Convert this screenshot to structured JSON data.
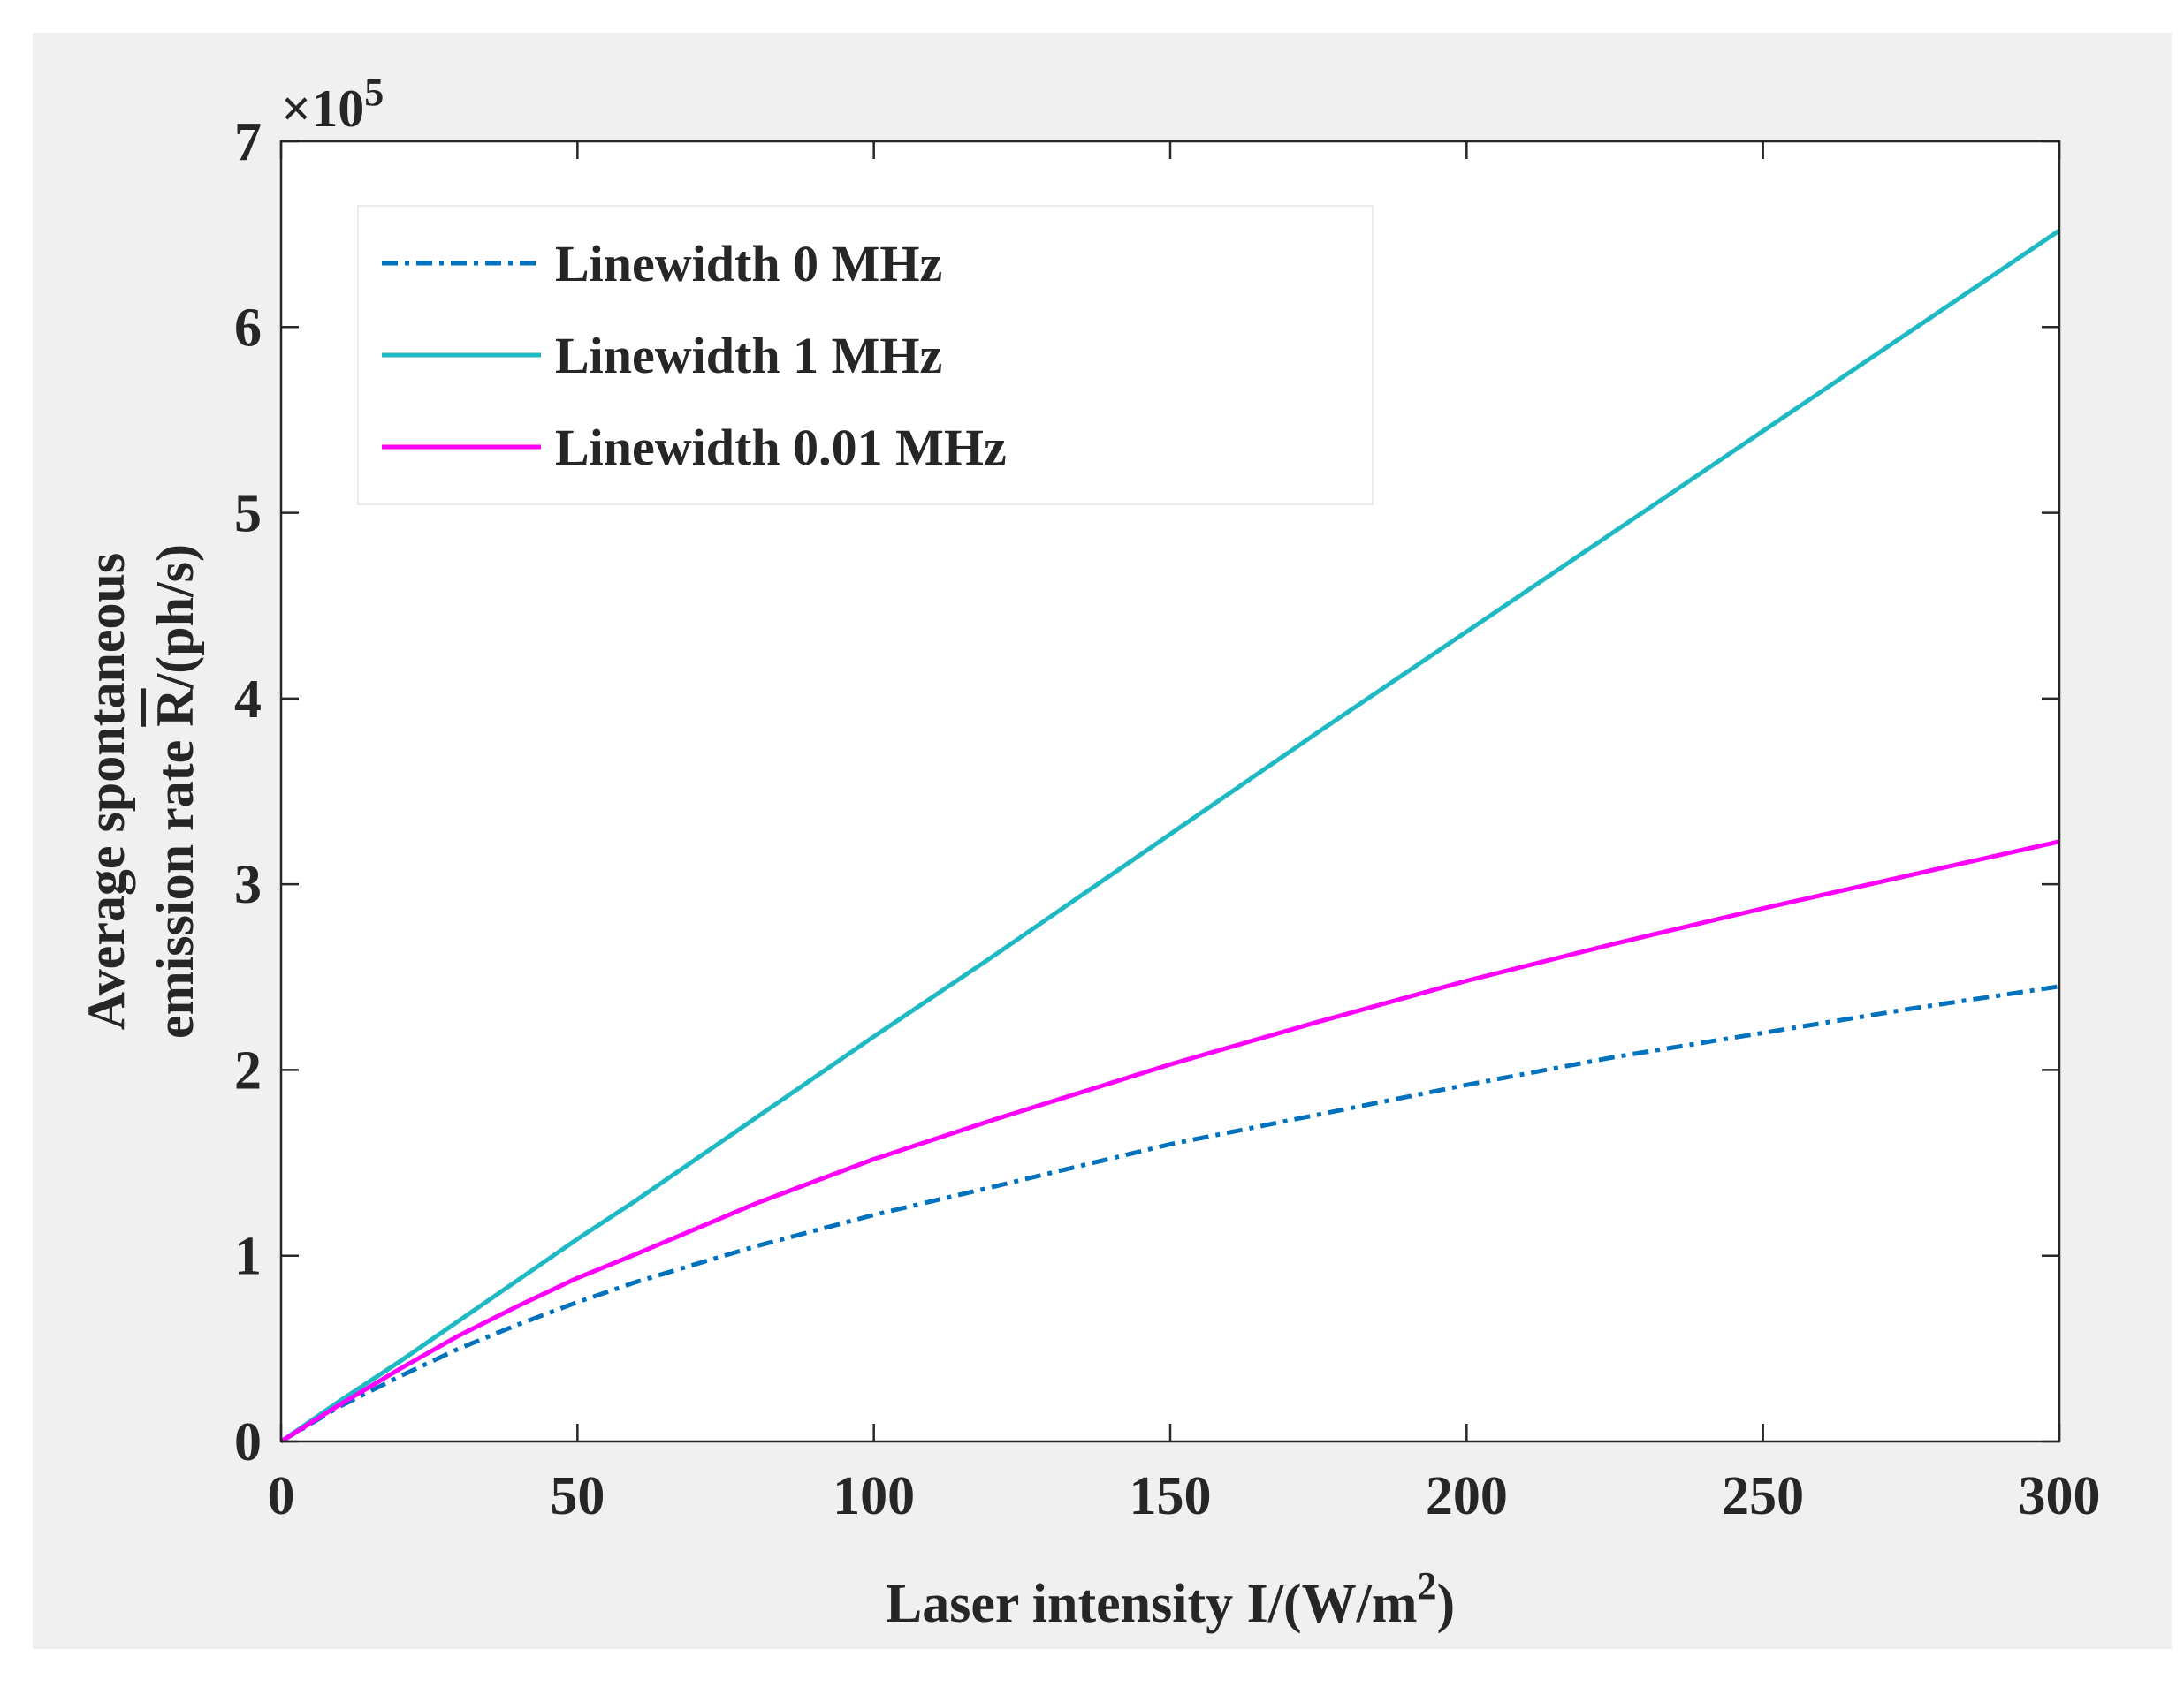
{
  "chart_data": {
    "type": "line",
    "title": "",
    "xlabel": "Laser intensity I/(W/m",
    "xlabel_sup": "2",
    "xlabel_end": ")",
    "ylabel_line1": "Average spontaneous",
    "ylabel_line2_prefix": "emission rate ",
    "ylabel_line2_symbol": "R",
    "ylabel_line2_suffix": "/(ph/s)",
    "y_multiplier_prefix": "×10",
    "y_multiplier_exp": "5",
    "xlim": [
      0,
      300
    ],
    "ylim": [
      0,
      7
    ],
    "xticks": [
      "0",
      "50",
      "100",
      "150",
      "200",
      "250",
      "300"
    ],
    "yticks": [
      "0",
      "1",
      "2",
      "3",
      "4",
      "5",
      "6",
      "7"
    ],
    "legend_position": "top-left",
    "x": [
      0,
      10,
      20,
      30,
      40,
      50,
      60,
      80,
      100,
      120,
      150,
      175,
      200,
      225,
      250,
      275,
      300
    ],
    "series": [
      {
        "name": "Linewidth 0 MHz",
        "color": "#0072bd",
        "style": "dashdot",
        "values": [
          0,
          0.19,
          0.35,
          0.5,
          0.63,
          0.75,
          0.86,
          1.05,
          1.22,
          1.37,
          1.6,
          1.76,
          1.92,
          2.07,
          2.2,
          2.33,
          2.45
        ]
      },
      {
        "name": "Linewidth 1 MHz",
        "color": "#1fb9c4",
        "style": "solid",
        "values": [
          0,
          0.22,
          0.43,
          0.65,
          0.87,
          1.09,
          1.3,
          1.74,
          2.18,
          2.61,
          3.27,
          3.82,
          4.36,
          4.9,
          5.44,
          5.98,
          6.52
        ]
      },
      {
        "name": "Linewidth 0.01 MHz",
        "color": "#ff00ff",
        "style": "solid",
        "values": [
          0,
          0.2,
          0.39,
          0.57,
          0.73,
          0.88,
          1.01,
          1.28,
          1.52,
          1.73,
          2.03,
          2.26,
          2.48,
          2.68,
          2.87,
          3.05,
          3.23
        ]
      }
    ]
  }
}
